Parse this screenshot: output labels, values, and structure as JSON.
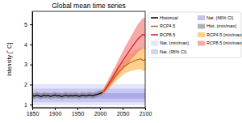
{
  "chart_data": {
    "type": "line",
    "title": "Global mean time series",
    "y_label": "Intensity [˚ C]",
    "xlim": [
      1850,
      2100
    ],
    "xticks": [
      1850,
      1900,
      1950,
      2000,
      2050,
      2100
    ],
    "ylim": [
      0.85,
      5.65
    ],
    "yticks": [
      1,
      2,
      3,
      4,
      5
    ],
    "grid": false,
    "legend": "right",
    "series": [
      {
        "name": "Historical",
        "type": "line",
        "color": "#000000",
        "x": [
          1850,
          1855,
          1860,
          1865,
          1870,
          1875,
          1880,
          1885,
          1890,
          1895,
          1900,
          1905,
          1910,
          1915,
          1920,
          1925,
          1930,
          1935,
          1940,
          1945,
          1950,
          1955,
          1960,
          1965,
          1970,
          1975,
          1980,
          1985,
          1990,
          1995,
          2000,
          2005
        ],
        "values": [
          1.45,
          1.42,
          1.48,
          1.44,
          1.4,
          1.47,
          1.43,
          1.46,
          1.41,
          1.44,
          1.48,
          1.43,
          1.45,
          1.4,
          1.44,
          1.47,
          1.42,
          1.45,
          1.43,
          1.46,
          1.44,
          1.41,
          1.47,
          1.45,
          1.43,
          1.48,
          1.46,
          1.44,
          1.49,
          1.52,
          1.56,
          1.6
        ]
      },
      {
        "name": "RCP4.5",
        "type": "line",
        "color": "#b8681c",
        "x": [
          2005,
          2010,
          2015,
          2020,
          2025,
          2030,
          2035,
          2040,
          2045,
          2050,
          2055,
          2060,
          2065,
          2070,
          2075,
          2080,
          2085,
          2090,
          2095,
          2100
        ],
        "values": [
          1.6,
          1.7,
          1.85,
          2.0,
          2.15,
          2.3,
          2.45,
          2.6,
          2.7,
          2.82,
          2.92,
          3.0,
          3.08,
          3.12,
          3.18,
          3.22,
          3.25,
          3.28,
          3.2,
          3.25
        ]
      },
      {
        "name": "RCP8.5",
        "type": "line",
        "color": "#d42020",
        "x": [
          2005,
          2010,
          2015,
          2020,
          2025,
          2030,
          2035,
          2040,
          2045,
          2050,
          2055,
          2060,
          2065,
          2070,
          2075,
          2080,
          2085,
          2090,
          2095,
          2100
        ],
        "values": [
          1.6,
          1.72,
          1.9,
          2.08,
          2.25,
          2.45,
          2.62,
          2.82,
          3.0,
          3.18,
          3.35,
          3.52,
          3.68,
          3.85,
          4.0,
          4.15,
          4.3,
          4.4,
          4.5,
          4.45
        ]
      },
      {
        "name": "Nat. (min/max)",
        "type": "area",
        "color": "#d4d4f6",
        "x": [
          1850,
          2100
        ],
        "low": [
          0.97,
          0.97
        ],
        "high": [
          2.02,
          2.02
        ]
      },
      {
        "name": "Nat. (95% CI)",
        "type": "area",
        "color": "#b4b4ee",
        "x": [
          1850,
          2100
        ],
        "low": [
          1.12,
          1.12
        ],
        "high": [
          1.8,
          1.8
        ]
      },
      {
        "name": "Nat. (66% CI)",
        "type": "area",
        "color": "#9898e4",
        "x": [
          1850,
          2100
        ],
        "low": [
          1.3,
          1.3
        ],
        "high": [
          1.58,
          1.58
        ]
      },
      {
        "name": "Hist. (min/max)",
        "type": "area",
        "color": "#808080",
        "x": [
          1850,
          1855,
          1860,
          1865,
          1870,
          1875,
          1880,
          1885,
          1890,
          1895,
          1900,
          1905,
          1910,
          1915,
          1920,
          1925,
          1930,
          1935,
          1940,
          1945,
          1950,
          1955,
          1960,
          1965,
          1970,
          1975,
          1980,
          1985,
          1990,
          1995,
          2000,
          2005
        ],
        "low": [
          1.31,
          1.28,
          1.34,
          1.3,
          1.26,
          1.33,
          1.29,
          1.32,
          1.27,
          1.3,
          1.34,
          1.29,
          1.31,
          1.26,
          1.3,
          1.33,
          1.28,
          1.31,
          1.29,
          1.32,
          1.3,
          1.27,
          1.33,
          1.31,
          1.29,
          1.34,
          1.32,
          1.3,
          1.35,
          1.38,
          1.42,
          1.46
        ],
        "high": [
          1.61,
          1.58,
          1.64,
          1.6,
          1.56,
          1.63,
          1.59,
          1.62,
          1.57,
          1.6,
          1.64,
          1.59,
          1.61,
          1.56,
          1.6,
          1.63,
          1.58,
          1.61,
          1.59,
          1.62,
          1.6,
          1.57,
          1.63,
          1.61,
          1.59,
          1.64,
          1.62,
          1.6,
          1.65,
          1.68,
          1.72,
          1.76
        ]
      },
      {
        "name": "RCP4.5 (min/max)",
        "type": "area",
        "color": "#ffb040",
        "x": [
          2005,
          2010,
          2015,
          2020,
          2025,
          2030,
          2035,
          2040,
          2045,
          2050,
          2055,
          2060,
          2065,
          2070,
          2075,
          2080,
          2085,
          2090,
          2095,
          2100
        ],
        "low": [
          1.5,
          1.55,
          1.68,
          1.8,
          1.92,
          2.04,
          2.16,
          2.28,
          2.36,
          2.46,
          2.54,
          2.6,
          2.66,
          2.68,
          2.72,
          2.74,
          2.76,
          2.78,
          2.68,
          2.7
        ],
        "high": [
          1.72,
          1.86,
          2.05,
          2.24,
          2.42,
          2.6,
          2.78,
          2.96,
          3.08,
          3.22,
          3.34,
          3.44,
          3.54,
          3.6,
          3.68,
          3.74,
          3.8,
          3.86,
          3.8,
          3.88
        ]
      },
      {
        "name": "RCP8.5 (min/max)",
        "type": "area",
        "color": "#f07070",
        "x": [
          2005,
          2010,
          2015,
          2020,
          2025,
          2030,
          2035,
          2040,
          2045,
          2050,
          2055,
          2060,
          2065,
          2070,
          2075,
          2080,
          2085,
          2090,
          2095,
          2100
        ],
        "low": [
          1.5,
          1.58,
          1.72,
          1.86,
          2.0,
          2.16,
          2.3,
          2.46,
          2.6,
          2.74,
          2.88,
          3.02,
          3.14,
          3.28,
          3.4,
          3.52,
          3.64,
          3.72,
          3.8,
          3.74
        ],
        "high": [
          1.72,
          1.88,
          2.1,
          2.32,
          2.52,
          2.76,
          2.96,
          3.2,
          3.42,
          3.64,
          3.84,
          4.06,
          4.26,
          4.46,
          4.66,
          4.86,
          5.04,
          5.18,
          5.32,
          5.3
        ]
      }
    ]
  }
}
